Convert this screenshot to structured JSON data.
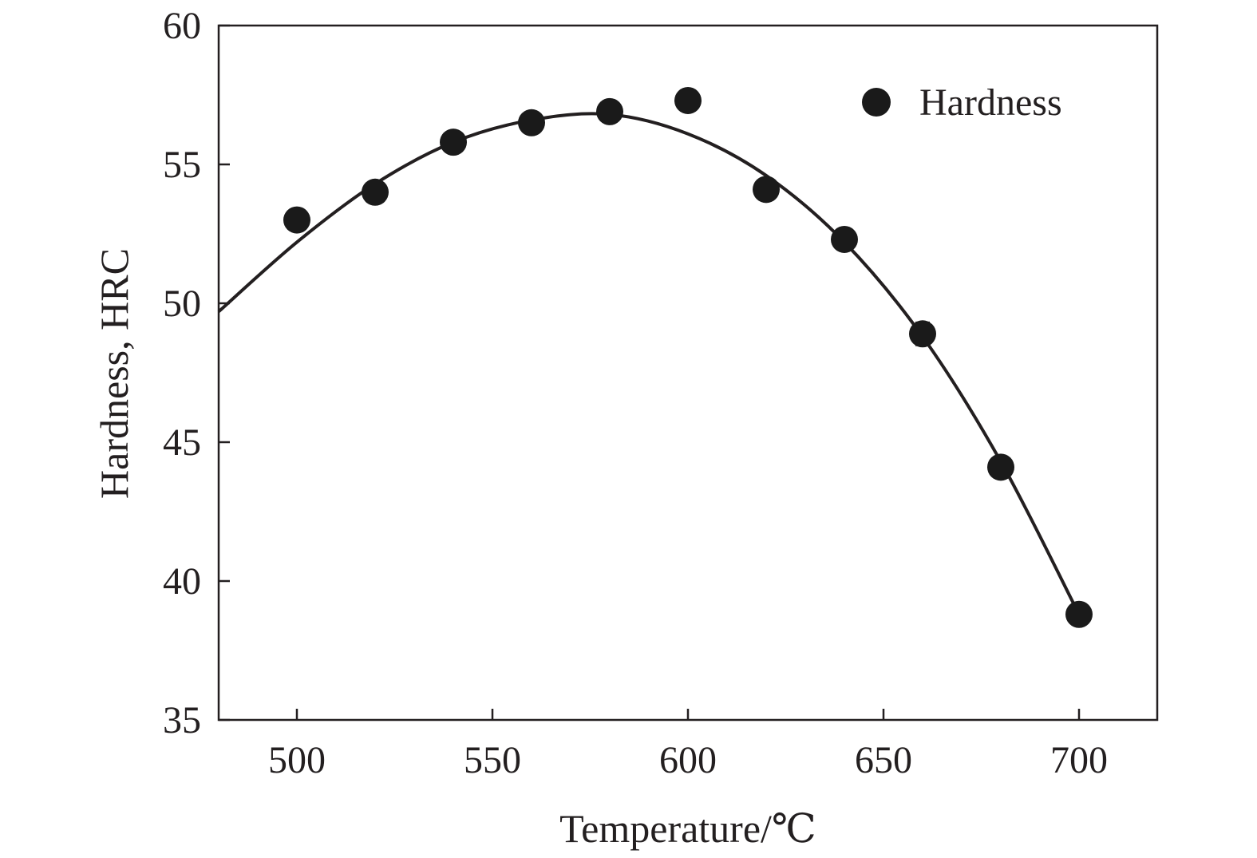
{
  "chart_data": {
    "type": "scatter",
    "title": "",
    "xlabel": "Temperature/℃",
    "ylabel": "Hardness, HRC",
    "xlim": [
      480,
      720
    ],
    "ylim": [
      35,
      60
    ],
    "x_ticks": [
      500,
      550,
      600,
      650,
      700
    ],
    "y_ticks": [
      35,
      40,
      45,
      50,
      55,
      60
    ],
    "grid": false,
    "legend_position": "top-right",
    "series": [
      {
        "name": "Hardness",
        "marker": "filled-circle",
        "color": "#1a1a1a",
        "x": [
          500,
          520,
          540,
          560,
          580,
          600,
          620,
          640,
          660,
          680,
          700
        ],
        "y": [
          53.0,
          54.0,
          55.8,
          56.5,
          56.9,
          57.3,
          54.1,
          52.3,
          48.9,
          44.1,
          38.8
        ],
        "error": [
          0.35,
          0.2,
          0.2,
          0.35,
          0.2,
          0.15,
          0.2,
          0.35,
          0.4,
          0.35,
          0.15
        ]
      }
    ],
    "fit_curve": {
      "x": [
        480,
        500,
        520,
        540,
        560,
        580,
        600,
        620,
        640,
        660,
        680,
        700
      ],
      "y": [
        49.7,
        52.2,
        54.3,
        55.8,
        56.6,
        56.8,
        56.1,
        54.6,
        52.2,
        48.8,
        44.3,
        38.8
      ]
    }
  }
}
